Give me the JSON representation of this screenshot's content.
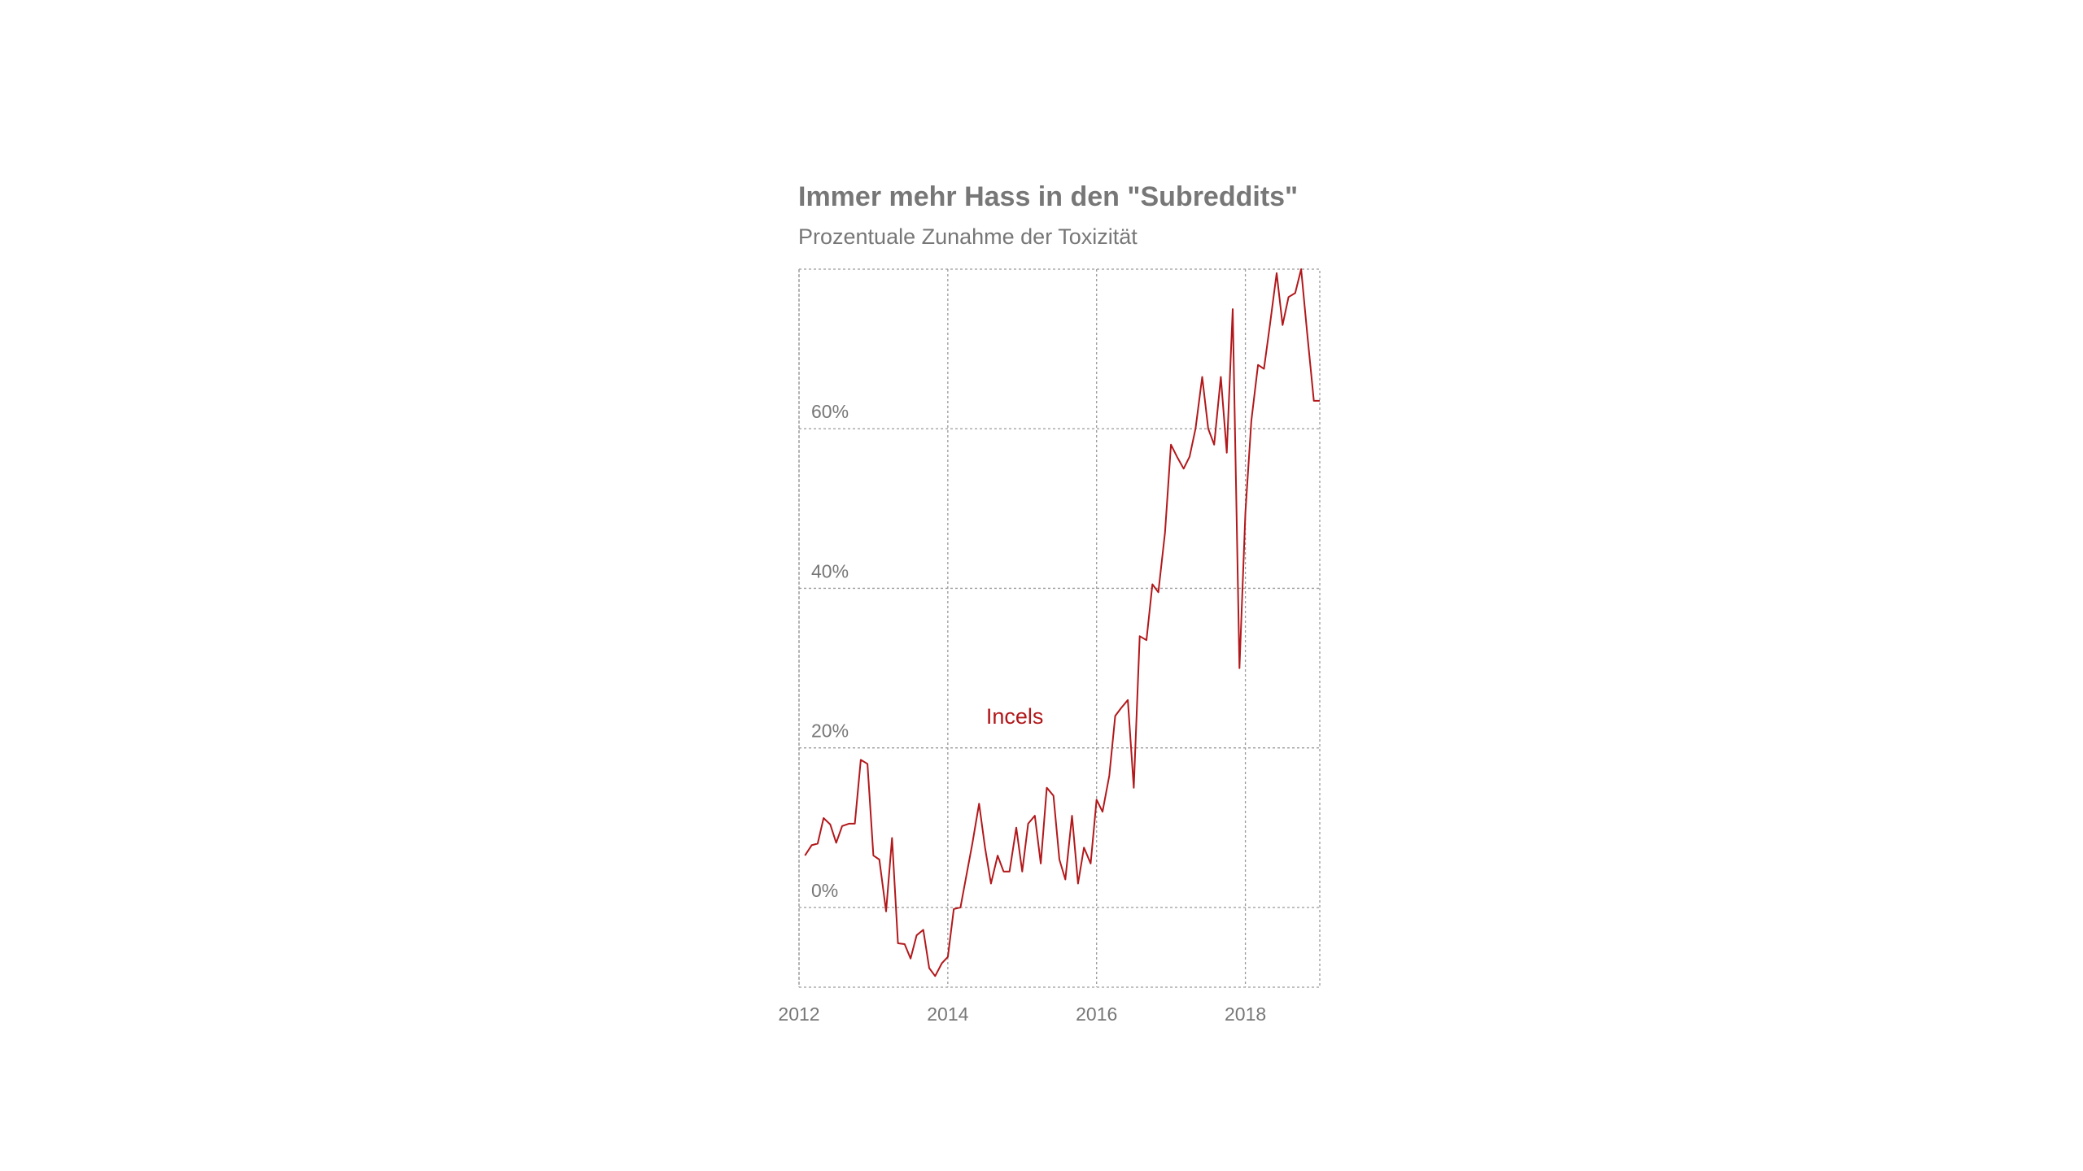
{
  "title": "Immer mehr Hass in den \"Subreddits\"",
  "subtitle": "Prozentuale Zunahme der Toxizität",
  "colors": {
    "line": "#b2181b",
    "text": "#777777",
    "grid": "#9a9a9a"
  },
  "chart_data": {
    "type": "line",
    "title": "Immer mehr Hass in den \"Subreddits\"",
    "subtitle": "Prozentuale Zunahme der Toxizität",
    "xlabel": "",
    "ylabel": "",
    "xlim": [
      2012,
      2019
    ],
    "ylim": [
      -10,
      80
    ],
    "x_ticks": [
      2012,
      2014,
      2016,
      2018
    ],
    "x_tick_labels": [
      "2012",
      "2014",
      "2016",
      "2018"
    ],
    "y_ticks": [
      0,
      20,
      40,
      60
    ],
    "y_tick_labels": [
      "0%",
      "20%",
      "40%",
      "60%"
    ],
    "grid": true,
    "y_tick_label_position": "inside-left-above-gridline",
    "series": [
      {
        "name": "Incels",
        "label_position": {
          "x": 2014.9,
          "y": 23
        },
        "x": [
          2012.08,
          2012.17,
          2012.25,
          2012.33,
          2012.42,
          2012.5,
          2012.58,
          2012.67,
          2012.75,
          2012.83,
          2012.92,
          2013.0,
          2013.08,
          2013.17,
          2013.25,
          2013.33,
          2013.42,
          2013.5,
          2013.58,
          2013.67,
          2013.75,
          2013.83,
          2013.92,
          2014.0,
          2014.08,
          2014.17,
          2014.25,
          2014.33,
          2014.42,
          2014.5,
          2014.58,
          2014.67,
          2014.75,
          2014.83,
          2014.92,
          2015.0,
          2015.08,
          2015.17,
          2015.25,
          2015.33,
          2015.42,
          2015.5,
          2015.58,
          2015.67,
          2015.75,
          2015.83,
          2015.92,
          2016.0,
          2016.08,
          2016.17,
          2016.25,
          2016.33,
          2016.42,
          2016.5,
          2016.58,
          2016.67,
          2016.75,
          2016.83,
          2016.92,
          2017.0,
          2017.08,
          2017.17,
          2017.25,
          2017.33,
          2017.42,
          2017.5,
          2017.58,
          2017.67,
          2017.75,
          2017.83,
          2017.92,
          2018.0,
          2018.08,
          2018.17,
          2018.25,
          2018.33,
          2018.42,
          2018.5,
          2018.58,
          2018.67,
          2018.75,
          2018.83,
          2018.92,
          2019.0
        ],
        "values": [
          6.5,
          7.8,
          8.0,
          11.2,
          10.4,
          8.1,
          10.2,
          10.5,
          10.5,
          18.5,
          18.0,
          6.5,
          6.0,
          -0.5,
          8.7,
          -4.5,
          -4.6,
          -6.4,
          -3.5,
          -2.8,
          -7.6,
          -8.6,
          -7.0,
          -6.2,
          -0.2,
          0.0,
          4.0,
          8.0,
          13.0,
          7.5,
          3.0,
          6.5,
          4.5,
          4.5,
          10.0,
          4.5,
          10.5,
          11.5,
          5.5,
          15.0,
          14.0,
          6.0,
          3.5,
          11.5,
          3.0,
          7.5,
          5.5,
          13.5,
          12.0,
          16.5,
          24.0,
          25.0,
          26.0,
          15.0,
          34.0,
          33.5,
          40.5,
          39.5,
          47.0,
          58.0,
          56.5,
          55.0,
          56.5,
          60.0,
          66.5,
          60.0,
          58.0,
          66.5,
          57.0,
          75.0,
          30.0,
          49.5,
          61.0,
          68.0,
          67.5,
          73.0,
          79.5,
          73.0,
          76.5,
          77.0,
          80.0,
          72.0,
          63.5,
          63.5
        ]
      }
    ]
  }
}
